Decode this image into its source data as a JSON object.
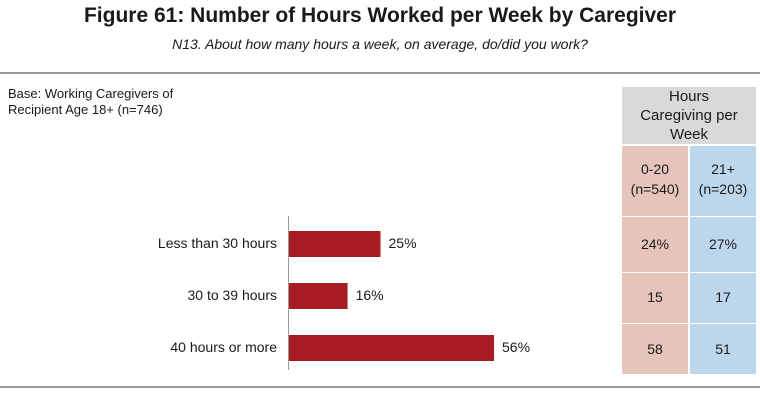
{
  "title": "Figure 61: Number of Hours Worked per Week by Caregiver",
  "subtitle": "N13. About how many hours a week, on average, do/did you work?",
  "base_note": "Base: Working Caregivers of Recipient Age 18+ (n=746)",
  "colors": {
    "bar": "#a81c24",
    "pink": "#e6c3bb",
    "blue": "#bcd6ec",
    "header": "#d9d9d9"
  },
  "chart_data": {
    "type": "bar",
    "orientation": "horizontal",
    "categories": [
      "Less than 30 hours",
      "30 to 39 hours",
      "40 hours or more"
    ],
    "values": [
      25,
      16,
      56
    ],
    "value_labels": [
      "25%",
      "16%",
      "56%"
    ],
    "xlim": [
      0,
      60
    ],
    "grid": false
  },
  "side_table": {
    "header": "Hours Caregiving per Week",
    "columns": [
      {
        "label": "0-20",
        "n": "(n=540)",
        "values": [
          "24%",
          "15",
          "58"
        ]
      },
      {
        "label": "21+",
        "n": "(n=203)",
        "values": [
          "27%",
          "17",
          "51"
        ]
      }
    ]
  }
}
